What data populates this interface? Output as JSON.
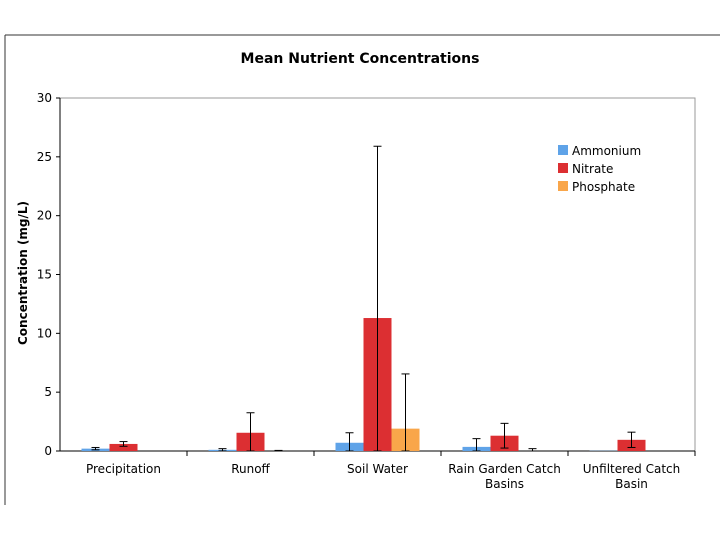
{
  "chart_data": {
    "type": "bar",
    "title": "Mean Nutrient Concentrations",
    "xlabel": "",
    "ylabel": "Concentration (mg/L)",
    "ylim": [
      0,
      30
    ],
    "yticks": [
      0,
      5,
      10,
      15,
      20,
      25,
      30
    ],
    "categories": [
      "Precipitation",
      "Runoff",
      "Soil Water",
      "Rain Garden Catch Basins",
      "Unfiltered Catch Basin"
    ],
    "series": [
      {
        "name": "Ammonium",
        "color": "#5fa3e8",
        "values": [
          0.2,
          0.1,
          0.7,
          0.35,
          0.02
        ],
        "error": [
          0.1,
          0.1,
          0.85,
          0.7,
          0.0
        ]
      },
      {
        "name": "Nitrate",
        "color": "#dc2f32",
        "values": [
          0.6,
          1.55,
          11.3,
          1.3,
          0.95
        ],
        "error": [
          0.2,
          1.7,
          14.6,
          1.05,
          0.65
        ]
      },
      {
        "name": "Phosphate",
        "color": "#f9a64a",
        "values": [
          0,
          0,
          1.9,
          0.0,
          0
        ],
        "error": [
          0,
          0.05,
          4.65,
          0.2,
          0
        ]
      }
    ],
    "grid": false,
    "legend": "upper-right"
  }
}
